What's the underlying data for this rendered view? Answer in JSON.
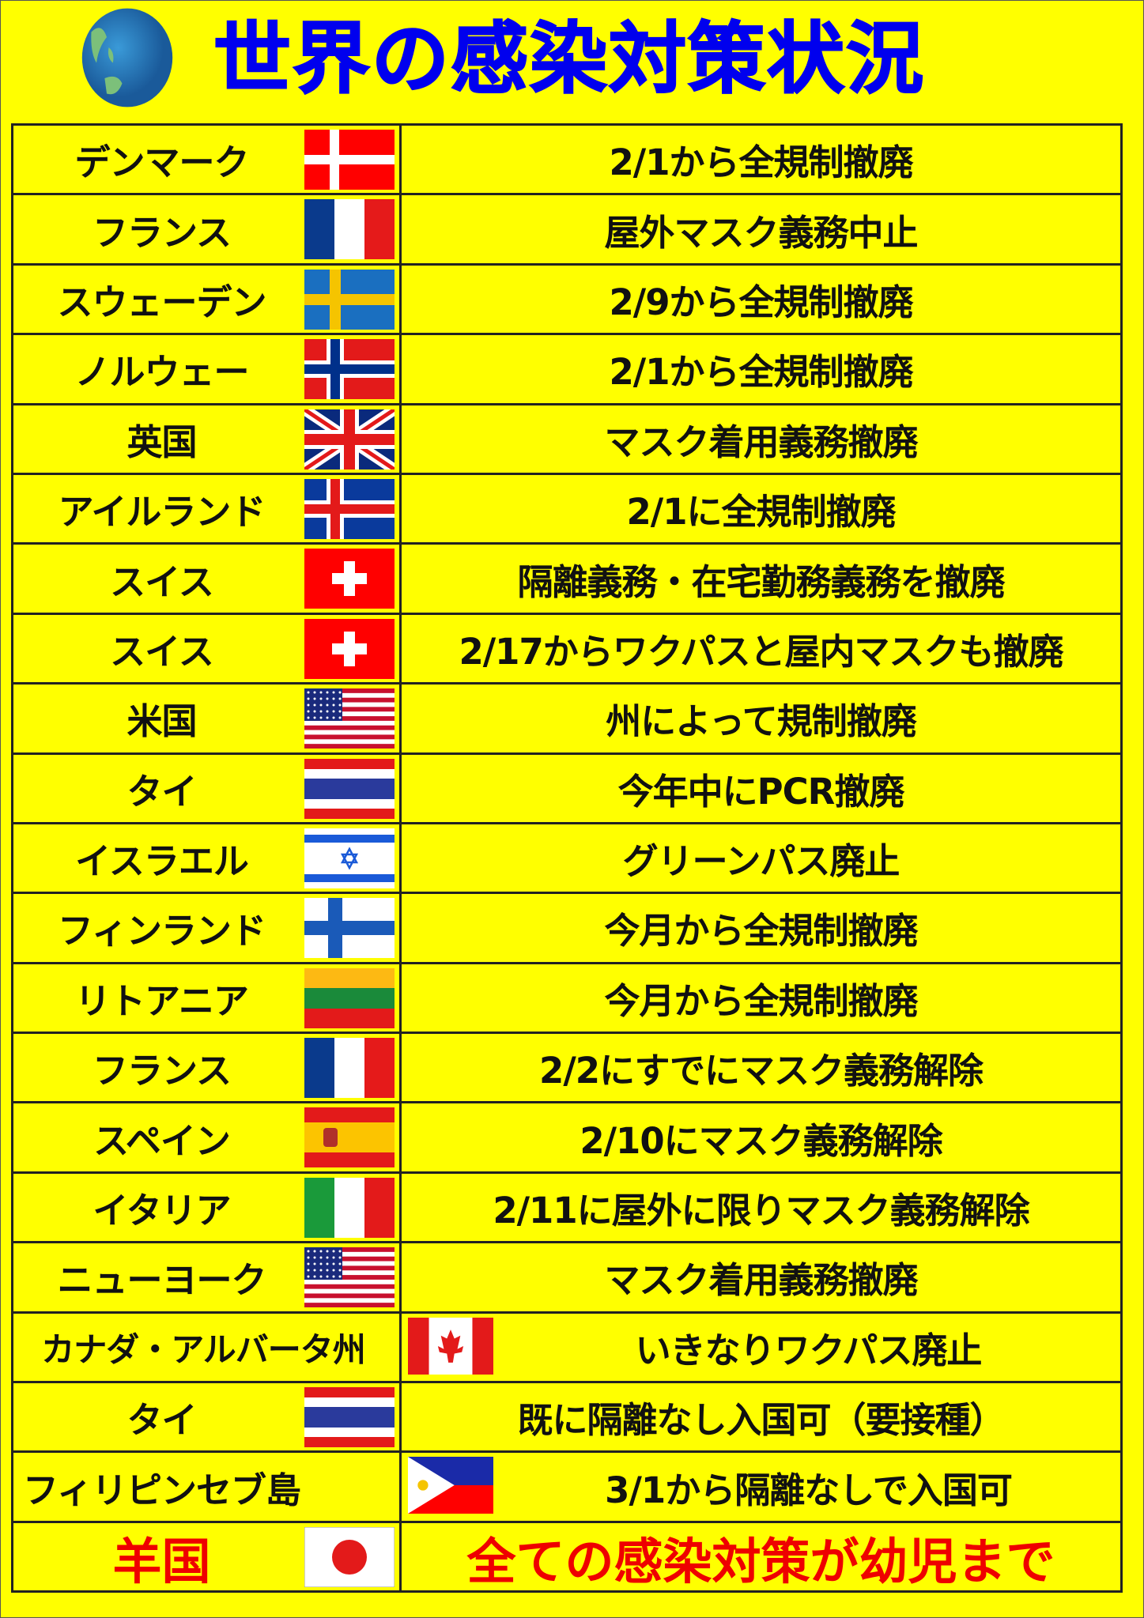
{
  "title": "世界の感染対策状況",
  "colors": {
    "background": "#ffff00",
    "title": "#0000ee",
    "highlight": "#ee0000",
    "text": "#111111"
  },
  "rows": [
    {
      "country": "デンマーク",
      "flag": "denmark-flag",
      "action": "2/1から全規制撤廃"
    },
    {
      "country": "フランス",
      "flag": "france-flag",
      "action": "屋外マスク義務中止"
    },
    {
      "country": "スウェーデン",
      "flag": "sweden-flag",
      "action": "2/9から全規制撤廃"
    },
    {
      "country": "ノルウェー",
      "flag": "norway-flag",
      "action": "2/1から全規制撤廃"
    },
    {
      "country": "英国",
      "flag": "uk-flag",
      "action": "マスク着用義務撤廃"
    },
    {
      "country": "アイルランド",
      "flag": "iceland-flag",
      "action": "2/1に全規制撤廃"
    },
    {
      "country": "スイス",
      "flag": "switzerland-flag",
      "action": "隔離義務・在宅勤務義務を撤廃"
    },
    {
      "country": "スイス",
      "flag": "switzerland-flag",
      "action": "2/17からワクパスと屋内マスクも撤廃"
    },
    {
      "country": "米国",
      "flag": "usa-flag",
      "action": "州によって規制撤廃"
    },
    {
      "country": "タイ",
      "flag": "thailand-flag",
      "action": "今年中にPCR撤廃"
    },
    {
      "country": "イスラエル",
      "flag": "israel-flag",
      "action": "グリーンパス廃止"
    },
    {
      "country": "フィンランド",
      "flag": "finland-flag",
      "action": "今月から全規制撤廃"
    },
    {
      "country": "リトアニア",
      "flag": "lithuania-flag",
      "action": "今月から全規制撤廃"
    },
    {
      "country": "フランス",
      "flag": "france-flag",
      "action": "2/2にすでにマスク義務解除"
    },
    {
      "country": "スペイン",
      "flag": "spain-flag",
      "action": "2/10にマスク義務解除"
    },
    {
      "country": "イタリア",
      "flag": "italy-flag",
      "action": "2/11に屋外に限りマスク義務解除"
    },
    {
      "country": "ニューヨーク",
      "flag": "usa-flag",
      "action": "マスク着用義務撤廃"
    },
    {
      "country": "カナダ・アルバータ州",
      "flag": "canada-flag",
      "action": "いきなりワクパス廃止"
    },
    {
      "country": "タイ",
      "flag": "thailand-flag",
      "action": "既に隔離なし入国可（要接種）"
    },
    {
      "country": "フィリピンセブ島",
      "flag": "philippines-flag",
      "action": "3/1から隔離なしで入国可"
    },
    {
      "country": "羊国",
      "flag": "japan-flag",
      "action": "全ての感染対策が幼児まで",
      "highlight": true
    }
  ]
}
